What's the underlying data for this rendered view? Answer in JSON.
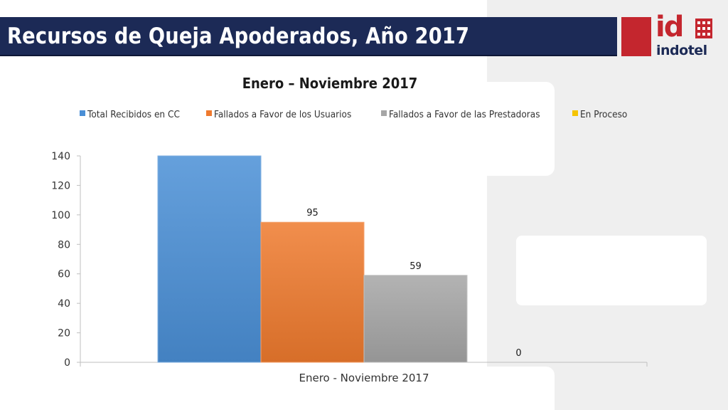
{
  "slide_title": "Recursos de Queja Apoderados, Año 2017",
  "logo": {
    "mark": "id",
    "wordmark": "indotel",
    "color": "#c4262e",
    "navy": "#1c2a56"
  },
  "chart_data": {
    "type": "bar",
    "title": "Enero – Noviembre 2017",
    "categories": [
      "Enero - Noviembre 2017"
    ],
    "series": [
      {
        "name": "Total Recibidos en CC",
        "values": [
          140
        ],
        "color": "#4a8fd6"
      },
      {
        "name": "Fallados a Favor de los Usuarios",
        "values": [
          95
        ],
        "color": "#ef7a2e",
        "label": "95"
      },
      {
        "name": "Fallados a Favor de las Prestadoras",
        "values": [
          59
        ],
        "color": "#a6a6a6",
        "label": "59"
      },
      {
        "name": "En Proceso",
        "values": [
          0
        ],
        "color": "#f5c400",
        "label": "0"
      }
    ],
    "ylim": [
      0,
      140
    ],
    "yticks": [
      "0",
      "20",
      "40",
      "60",
      "80",
      "100",
      "120",
      "140"
    ],
    "grid": false,
    "legend": "top"
  }
}
